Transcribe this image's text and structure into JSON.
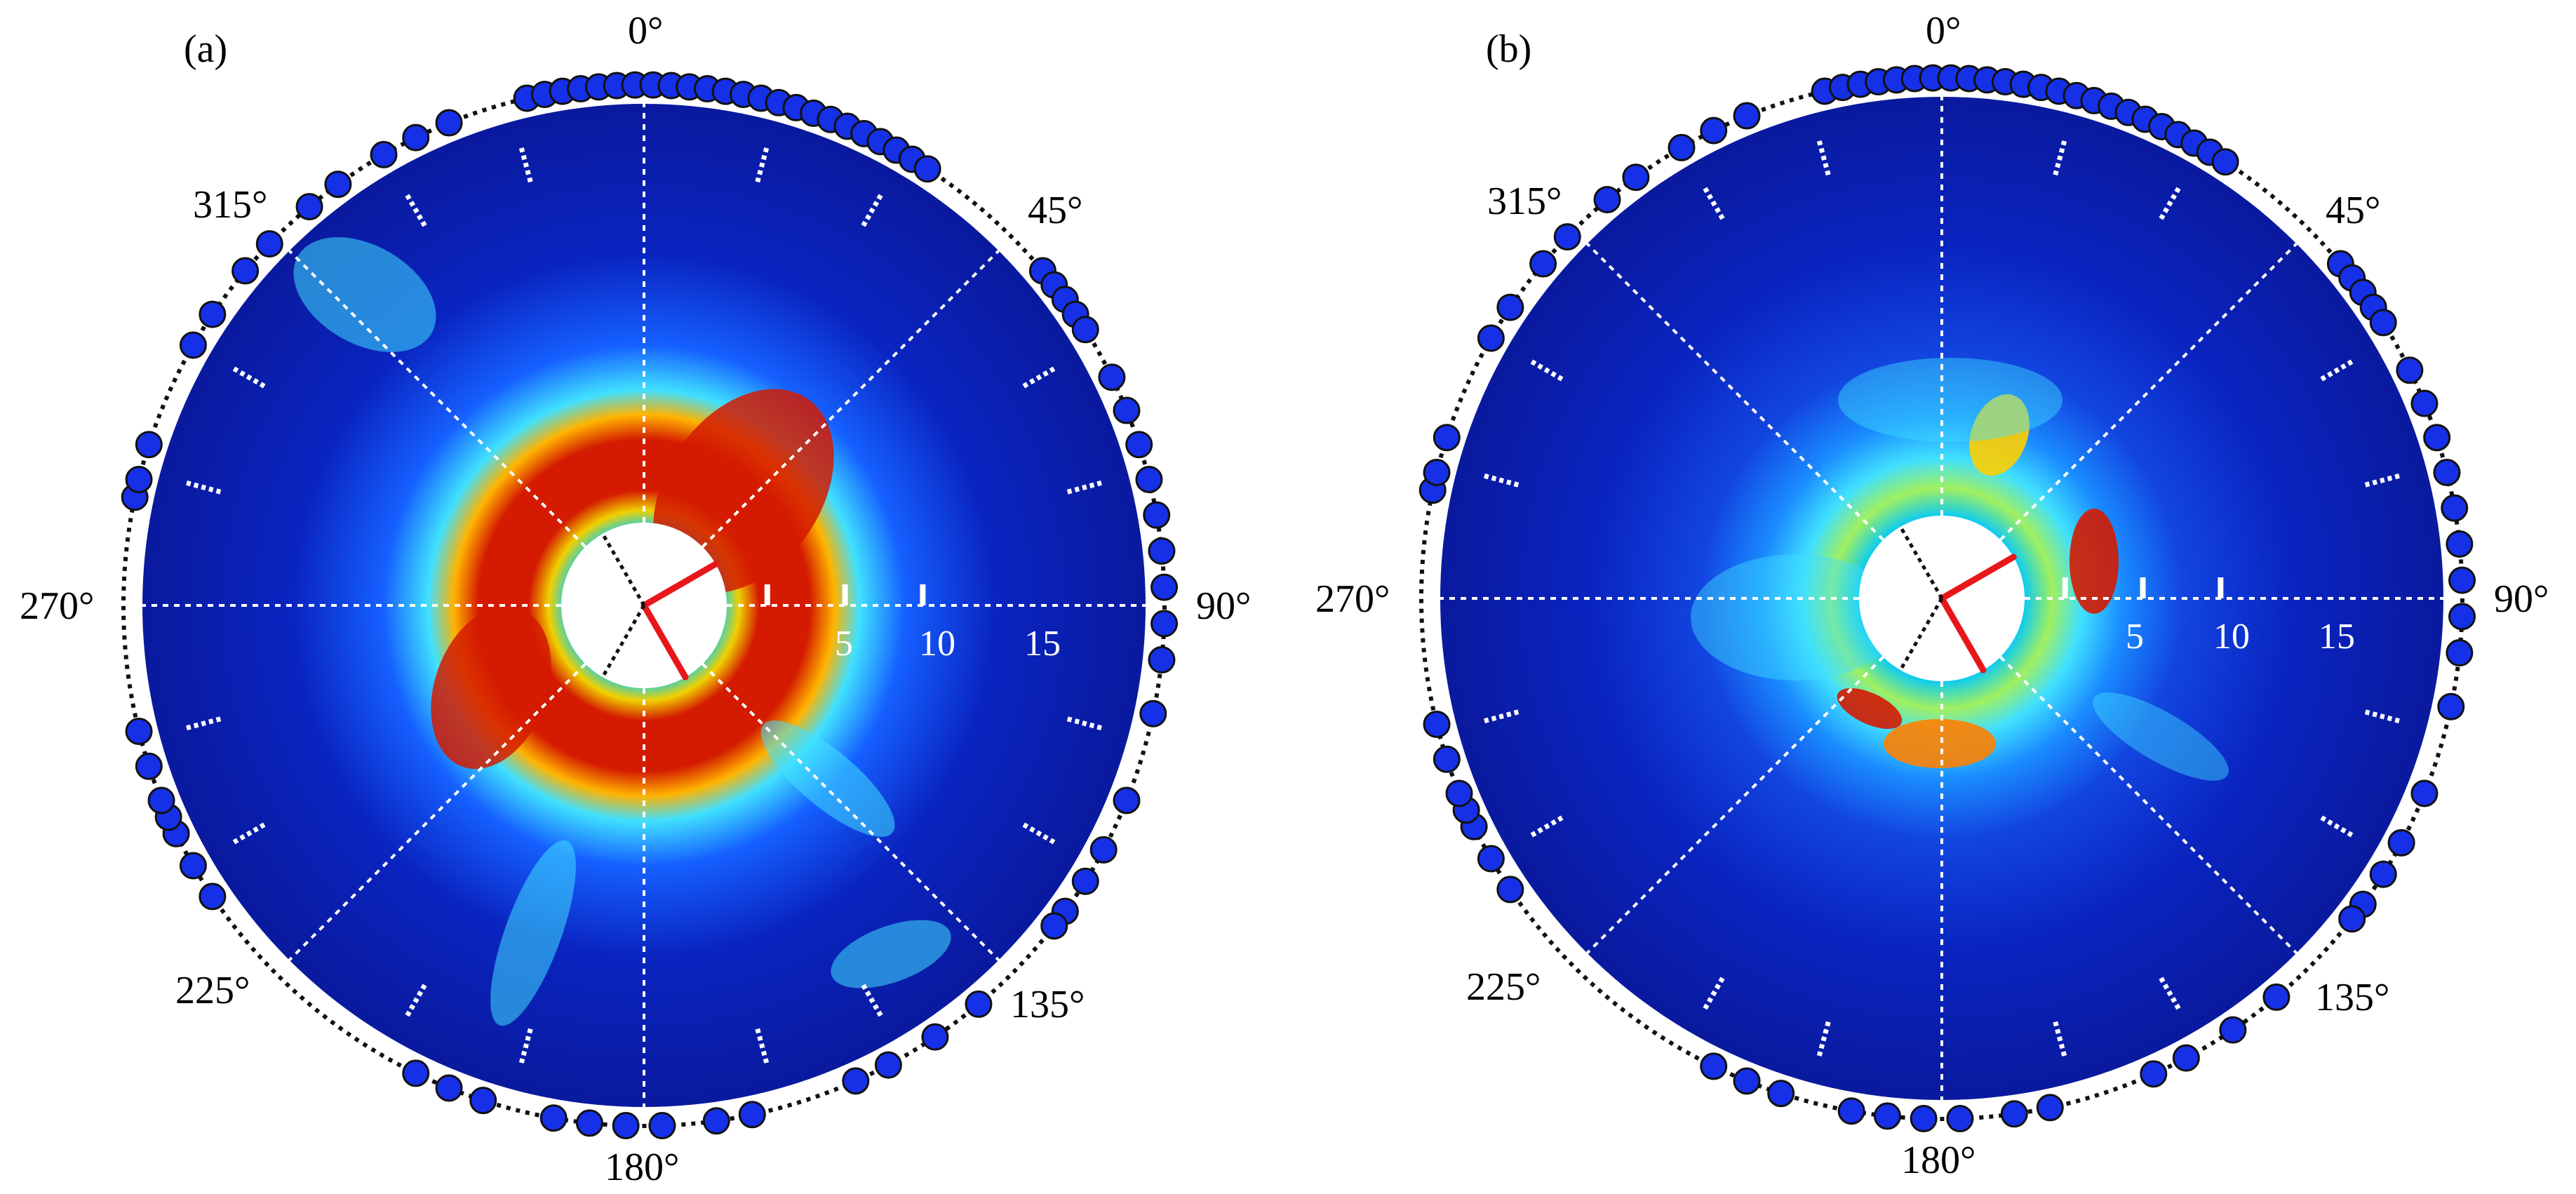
{
  "colors": {
    "background": "#ffffff",
    "field_low": "#0a1a9e",
    "field_mid": "#00c8ff",
    "field_high": "#d41a00",
    "sensor_fill": "#1530e6",
    "axis_red": "#e8161b",
    "grid": "#ffffff"
  },
  "directions": [
    "0°",
    "45°",
    "90°",
    "135°",
    "180°",
    "225°",
    "270°",
    "315°"
  ],
  "chart_data": [
    {
      "type": "polar-heatmap",
      "panel_label": "(a)",
      "theta_ticks_deg": [
        0,
        45,
        90,
        135,
        180,
        225,
        270,
        315
      ],
      "r_ticks": [
        5,
        10,
        15
      ],
      "r_range": [
        0,
        20
      ],
      "grid": true,
      "red_axes_deg": [
        60,
        150
      ],
      "hot_ring": {
        "r_inner": 2.5,
        "r_outer": 7,
        "intensity": "high"
      },
      "sensors_deg": [
        347,
        349,
        351,
        353,
        355,
        357,
        359,
        1,
        3,
        5,
        7,
        9,
        11,
        13,
        15,
        17,
        19,
        21,
        23,
        25,
        27,
        29,
        31,
        33,
        50,
        52,
        54,
        56,
        58,
        64,
        68,
        72,
        76,
        80,
        84,
        88,
        92,
        96,
        102,
        112,
        118,
        122,
        126,
        128,
        140,
        146,
        152,
        156,
        168,
        172,
        178,
        182,
        186,
        190,
        198,
        202,
        206,
        236,
        240,
        244,
        246,
        248,
        252,
        256,
        282,
        284,
        288,
        300,
        304,
        310,
        314,
        320,
        324,
        330,
        334,
        338
      ]
    },
    {
      "type": "polar-heatmap",
      "panel_label": "(b)",
      "theta_ticks_deg": [
        0,
        45,
        90,
        135,
        180,
        225,
        270,
        315
      ],
      "r_ticks": [
        5,
        10,
        15
      ],
      "r_range": [
        0,
        20
      ],
      "grid": true,
      "red_axes_deg": [
        60,
        150
      ],
      "hot_ring": {
        "r_inner": 2.5,
        "r_outer": 7,
        "intensity": "medium"
      },
      "sensors_deg": [
        347,
        349,
        351,
        353,
        355,
        357,
        359,
        1,
        3,
        5,
        7,
        9,
        11,
        13,
        15,
        17,
        19,
        21,
        23,
        25,
        27,
        29,
        31,
        33,
        50,
        52,
        54,
        56,
        58,
        64,
        68,
        72,
        76,
        80,
        84,
        88,
        92,
        96,
        102,
        112,
        118,
        122,
        126,
        128,
        140,
        146,
        152,
        156,
        168,
        172,
        178,
        182,
        186,
        190,
        198,
        202,
        206,
        236,
        240,
        244,
        246,
        248,
        252,
        256,
        282,
        284,
        288,
        300,
        304,
        310,
        314,
        320,
        324,
        330,
        334,
        338
      ]
    }
  ]
}
